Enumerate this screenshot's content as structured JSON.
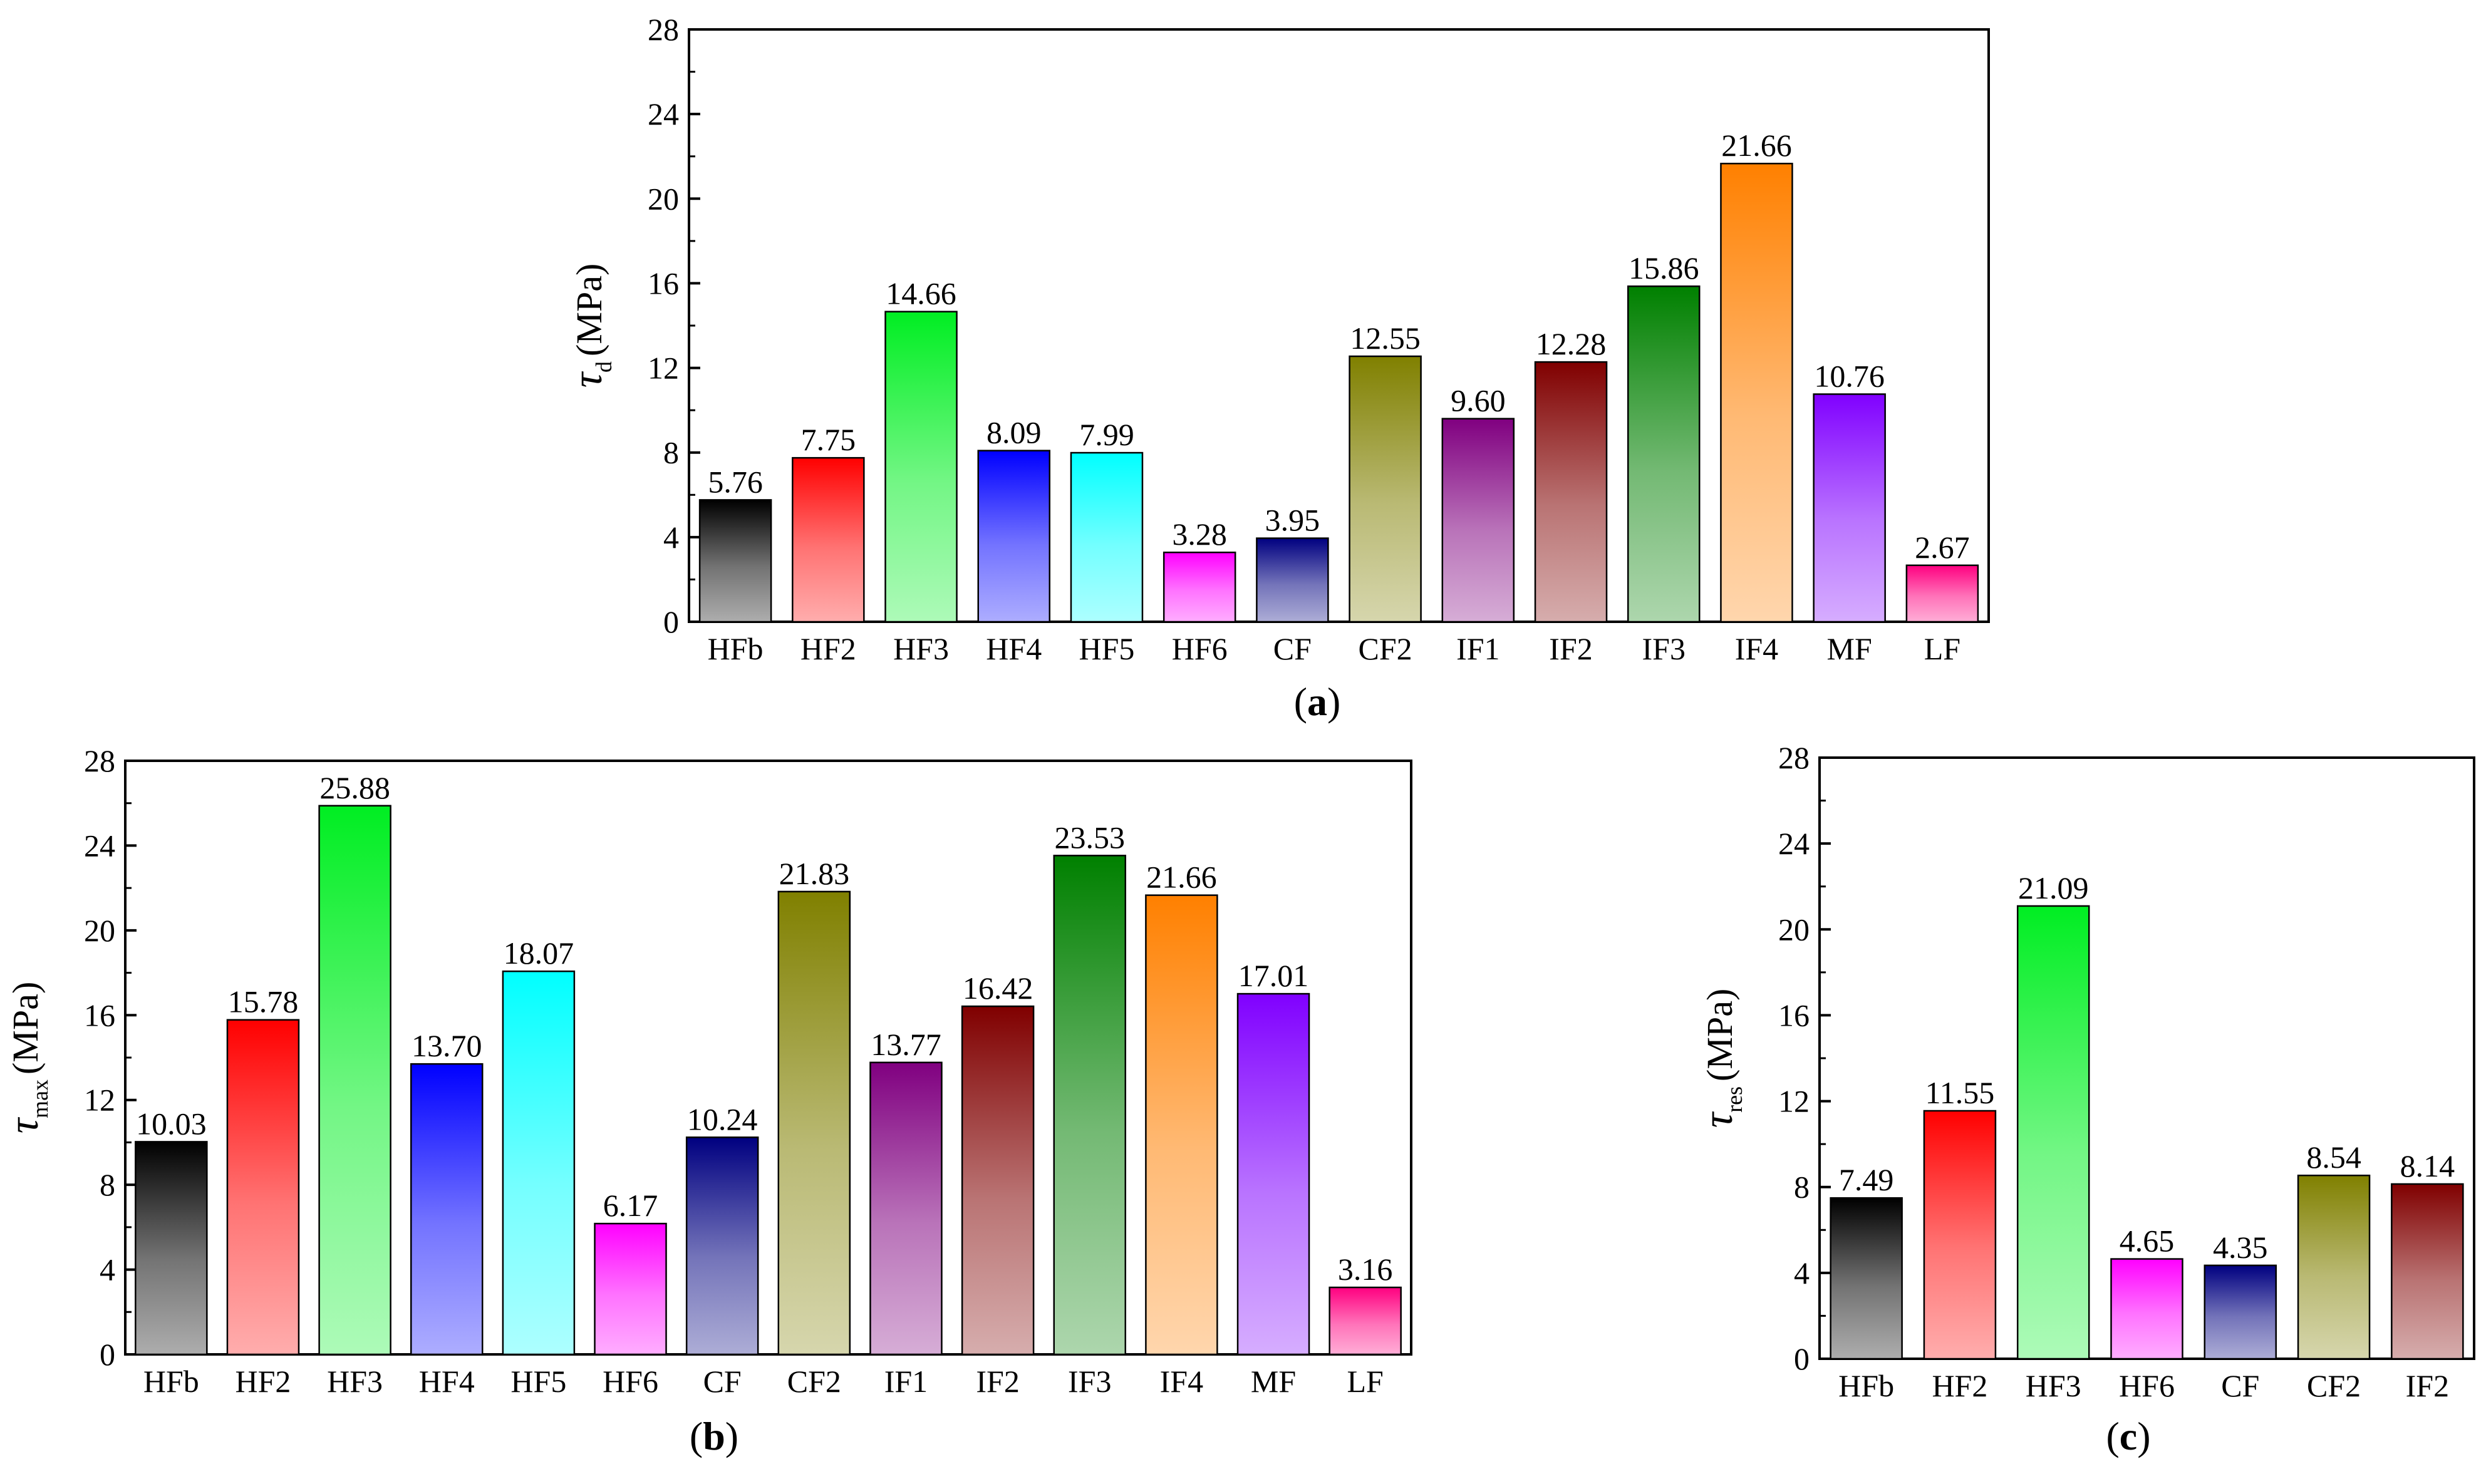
{
  "chart_data": [
    {
      "id": "a",
      "type": "bar",
      "panel_label": "a",
      "ylabel_symbol": "τ",
      "ylabel_subscript": "d",
      "ylabel_unit": "(MPa)",
      "ylim": [
        0,
        28
      ],
      "yticks": [
        0,
        4,
        8,
        12,
        16,
        20,
        24,
        28
      ],
      "grid": false,
      "categories": [
        "HFb",
        "HF2",
        "HF3",
        "HF4",
        "HF5",
        "HF6",
        "CF",
        "CF2",
        "IF1",
        "IF2",
        "IF3",
        "IF4",
        "MF",
        "LF"
      ],
      "values": [
        5.76,
        7.75,
        14.66,
        8.09,
        7.99,
        3.28,
        3.95,
        12.55,
        9.6,
        12.28,
        15.86,
        21.66,
        10.76,
        2.67
      ],
      "value_labels": [
        "5.76",
        "7.75",
        "14.66",
        "8.09",
        "7.99",
        "3.28",
        "3.95",
        "12.55",
        "9.60",
        "12.28",
        "15.86",
        "21.66",
        "10.76",
        "2.67"
      ],
      "colors": [
        "#000000",
        "#ff0000",
        "#00ee22",
        "#0000ff",
        "#00ffff",
        "#ff00ff",
        "#000080",
        "#808000",
        "#800080",
        "#800000",
        "#008000",
        "#ff8000",
        "#8000ff",
        "#ff0080"
      ]
    },
    {
      "id": "b",
      "type": "bar",
      "panel_label": "b",
      "ylabel_symbol": "τ",
      "ylabel_subscript": "max",
      "ylabel_unit": "(MPa)",
      "ylim": [
        0,
        28
      ],
      "yticks": [
        0,
        4,
        8,
        12,
        16,
        20,
        24,
        28
      ],
      "grid": false,
      "categories": [
        "HFb",
        "HF2",
        "HF3",
        "HF4",
        "HF5",
        "HF6",
        "CF",
        "CF2",
        "IF1",
        "IF2",
        "IF3",
        "IF4",
        "MF",
        "LF"
      ],
      "values": [
        10.03,
        15.78,
        25.88,
        13.7,
        18.07,
        6.17,
        10.24,
        21.83,
        13.77,
        16.42,
        23.53,
        21.66,
        17.01,
        3.16
      ],
      "value_labels": [
        "10.03",
        "15.78",
        "25.88",
        "13.70",
        "18.07",
        "6.17",
        "10.24",
        "21.83",
        "13.77",
        "16.42",
        "23.53",
        "21.66",
        "17.01",
        "3.16"
      ],
      "colors": [
        "#000000",
        "#ff0000",
        "#00ee22",
        "#0000ff",
        "#00ffff",
        "#ff00ff",
        "#000080",
        "#808000",
        "#800080",
        "#800000",
        "#008000",
        "#ff8000",
        "#8000ff",
        "#ff0080"
      ]
    },
    {
      "id": "c",
      "type": "bar",
      "panel_label": "c",
      "ylabel_symbol": "τ",
      "ylabel_subscript": "res",
      "ylabel_unit": "(MPa)",
      "ylim": [
        0,
        28
      ],
      "yticks": [
        0,
        4,
        8,
        12,
        16,
        20,
        24,
        28
      ],
      "grid": false,
      "categories": [
        "HFb",
        "HF2",
        "HF3",
        "HF6",
        "CF",
        "CF2",
        "IF2"
      ],
      "values": [
        7.49,
        11.55,
        21.09,
        4.65,
        4.35,
        8.54,
        8.14
      ],
      "value_labels": [
        "7.49",
        "11.55",
        "21.09",
        "4.65",
        "4.35",
        "8.54",
        "8.14"
      ],
      "colors": [
        "#000000",
        "#ff0000",
        "#00ee22",
        "#ff00ff",
        "#000080",
        "#808000",
        "#800000"
      ]
    }
  ]
}
